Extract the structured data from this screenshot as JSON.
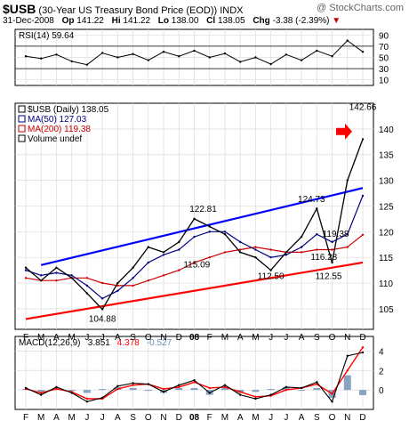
{
  "header": {
    "symbol": "$USB",
    "title": "(30-Year US Treasury Bond Price (EOD))",
    "exchange": "INDX",
    "watermark": "@ StockCharts.com",
    "date": "31-Dec-2008",
    "open_label": "Op",
    "open": "141.22",
    "high_label": "Hi",
    "high": "141.22",
    "low_label": "Lo",
    "low": "138.00",
    "close_label": "Cl",
    "close": "138.05",
    "change_label": "Chg",
    "change": "-3.38 (-2.39%)",
    "change_arrow": "▼"
  },
  "chart_data": [
    {
      "type": "line",
      "panel": "rsi",
      "legend": "RSI(14) 59.64",
      "ylim": [
        0,
        100
      ],
      "y_ticks": [
        90,
        70,
        50,
        30,
        10
      ],
      "reference_lines": [
        70,
        30
      ],
      "x": [
        "F",
        "M",
        "A",
        "M",
        "J",
        "J",
        "A",
        "S",
        "O",
        "N",
        "D",
        "08",
        "F",
        "M",
        "A",
        "M",
        "J",
        "J",
        "A",
        "S",
        "O",
        "N",
        "D"
      ],
      "series": [
        {
          "name": "RSI(14)",
          "color": "#000000",
          "values": [
            52,
            48,
            55,
            43,
            37,
            58,
            50,
            56,
            45,
            60,
            52,
            62,
            50,
            57,
            42,
            50,
            38,
            55,
            45,
            62,
            52,
            80,
            60
          ]
        }
      ]
    },
    {
      "type": "line",
      "panel": "price",
      "legend": [
        "$USB (Daily) 138.05",
        "MA(50) 127.03",
        "MA(200) 119.38",
        "Volume undef"
      ],
      "ylim": [
        101,
        145
      ],
      "y_ticks": [
        105,
        110,
        115,
        120,
        125,
        130,
        135,
        140
      ],
      "x": [
        "F",
        "M",
        "A",
        "M",
        "J",
        "J",
        "A",
        "S",
        "O",
        "N",
        "D",
        "08",
        "F",
        "M",
        "A",
        "M",
        "J",
        "J",
        "A",
        "S",
        "O",
        "N",
        "D"
      ],
      "annotations": [
        {
          "label": "142.66",
          "x": "D",
          "y": 142.66
        },
        {
          "label": "124.73",
          "x": "S",
          "y": 124.73
        },
        {
          "label": "122.81",
          "x": "F",
          "y": 122.81
        },
        {
          "label": "119.38",
          "x": "O",
          "y": 119.38
        },
        {
          "label": "116.28",
          "x": "O",
          "y": 116.28
        },
        {
          "label": "115.09",
          "x": "D",
          "y": 115.09
        },
        {
          "label": "112.50",
          "x": "J",
          "y": 112.5
        },
        {
          "label": "112.55",
          "x": "O",
          "y": 112.55
        },
        {
          "label": "104.88",
          "x": "J",
          "y": 104.88
        }
      ],
      "trendlines": [
        {
          "color": "#0000ff",
          "from": [
            "M",
            113.5
          ],
          "to": [
            "D",
            128.5
          ]
        },
        {
          "color": "#ff0000",
          "from": [
            "F",
            103.0
          ],
          "to": [
            "D",
            114.0
          ]
        }
      ],
      "series": [
        {
          "name": "$USB (Daily)",
          "color": "#000000",
          "values": [
            113,
            110.5,
            113,
            111,
            108,
            104.9,
            110,
            113,
            117,
            116,
            118,
            122.5,
            121,
            119.5,
            116,
            115,
            112.5,
            116,
            119,
            124.5,
            114,
            130,
            138
          ]
        },
        {
          "name": "MA(50)",
          "color": "#000080",
          "values": [
            112.5,
            111.5,
            112,
            111.5,
            109.5,
            107,
            108.5,
            111,
            114,
            115.5,
            116.5,
            119,
            120,
            120,
            118,
            116.5,
            115,
            115.5,
            117,
            119.5,
            118,
            119.5,
            127
          ]
        },
        {
          "name": "MA(200)",
          "color": "#cc0000",
          "values": [
            111,
            110.5,
            110.5,
            111,
            111,
            110,
            109.5,
            109.5,
            110.5,
            111.5,
            112.5,
            114,
            115,
            116,
            116.5,
            117,
            116.5,
            116,
            116,
            116.5,
            116.5,
            117,
            119.4
          ]
        }
      ]
    },
    {
      "type": "line",
      "panel": "macd",
      "legend": [
        "MACD(12,26,9)",
        "3.851",
        "4.378",
        "-0.527"
      ],
      "ylim": [
        -2,
        5.5
      ],
      "y_ticks": [
        4,
        2,
        0
      ],
      "x": [
        "F",
        "M",
        "A",
        "M",
        "J",
        "J",
        "A",
        "S",
        "O",
        "N",
        "D",
        "08",
        "F",
        "M",
        "A",
        "M",
        "J",
        "J",
        "A",
        "S",
        "O",
        "N",
        "D"
      ],
      "series": [
        {
          "name": "MACD",
          "color": "#000000",
          "values": [
            0.2,
            -0.5,
            0.3,
            -0.3,
            -1.2,
            -0.8,
            0.4,
            0.7,
            0.6,
            -0.2,
            0.5,
            1.0,
            -0.3,
            0.5,
            -0.5,
            -0.9,
            -0.5,
            0.3,
            0.2,
            0.8,
            -1.2,
            3.5,
            3.85
          ]
        },
        {
          "name": "Signal",
          "color": "#ff0000",
          "values": [
            0.1,
            -0.3,
            0.1,
            -0.2,
            -0.9,
            -0.9,
            0.1,
            0.5,
            0.6,
            0.1,
            0.3,
            0.8,
            0.2,
            0.3,
            -0.2,
            -0.7,
            -0.6,
            0.0,
            0.2,
            0.6,
            -0.4,
            2.0,
            4.38
          ]
        },
        {
          "name": "Histogram",
          "color": "#6a8fb5",
          "style": "bars",
          "values": [
            0.1,
            -0.2,
            0.2,
            -0.1,
            -0.3,
            0.1,
            0.3,
            0.2,
            0.0,
            -0.3,
            0.2,
            0.2,
            -0.5,
            0.2,
            -0.3,
            -0.2,
            0.1,
            0.3,
            0.0,
            0.2,
            -0.8,
            1.5,
            -0.53
          ]
        }
      ]
    }
  ]
}
